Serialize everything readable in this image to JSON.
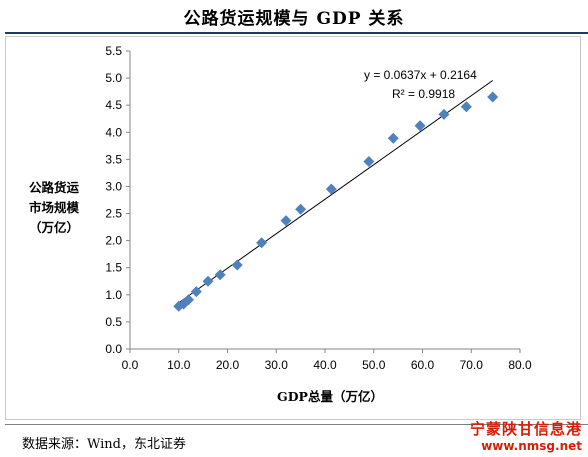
{
  "title": "公路货运规模与 GDP 关系",
  "source": "数据来源：Wind，东北证券",
  "watermark": {
    "name": "宁蒙陕甘信息港",
    "url": "www.nmsg.net"
  },
  "colors": {
    "marker": "#4f81bd",
    "trendline": "#000000",
    "title_rule": "#1f3864"
  },
  "chart_data": {
    "type": "scatter",
    "title": "公路货运规模与 GDP 关系",
    "xlabel": "GDP总量（万亿）",
    "ylabel_lines": [
      "公路货运",
      "市场规模",
      "（万亿）"
    ],
    "xlim": [
      0,
      80
    ],
    "ylim": [
      0,
      5.5
    ],
    "x_ticks": [
      "0.0",
      "10.0",
      "20.0",
      "30.0",
      "40.0",
      "50.0",
      "60.0",
      "70.0",
      "80.0"
    ],
    "y_ticks": [
      "0.0",
      "0.5",
      "1.0",
      "1.5",
      "2.0",
      "2.5",
      "3.0",
      "3.5",
      "4.0",
      "4.5",
      "5.0",
      "5.5"
    ],
    "grid": false,
    "marker": "diamond",
    "points": [
      {
        "x": 10.0,
        "y": 0.79
      },
      {
        "x": 11.0,
        "y": 0.83
      },
      {
        "x": 12.0,
        "y": 0.91
      },
      {
        "x": 13.6,
        "y": 1.06
      },
      {
        "x": 16.0,
        "y": 1.25
      },
      {
        "x": 18.5,
        "y": 1.37
      },
      {
        "x": 22.0,
        "y": 1.55
      },
      {
        "x": 27.0,
        "y": 1.96
      },
      {
        "x": 32.0,
        "y": 2.37
      },
      {
        "x": 35.0,
        "y": 2.58
      },
      {
        "x": 41.3,
        "y": 2.95
      },
      {
        "x": 49.0,
        "y": 3.46
      },
      {
        "x": 54.0,
        "y": 3.89
      },
      {
        "x": 59.5,
        "y": 4.12
      },
      {
        "x": 64.4,
        "y": 4.33
      },
      {
        "x": 69.0,
        "y": 4.47
      },
      {
        "x": 74.4,
        "y": 4.65
      }
    ],
    "trendline": {
      "slope": 0.0637,
      "intercept": 0.2164,
      "x_range": [
        10.0,
        74.4
      ]
    },
    "annotations": [
      "y = 0.0637x + 0.2164",
      "R² = 0.9918"
    ]
  }
}
